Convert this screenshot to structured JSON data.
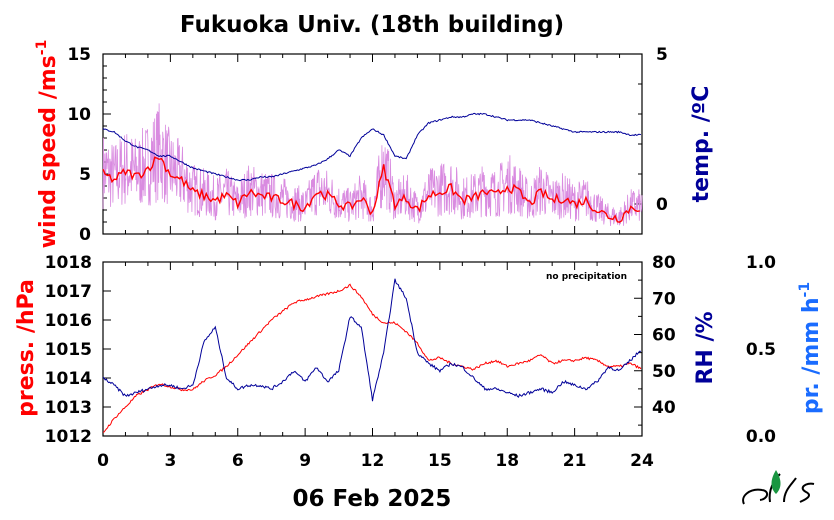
{
  "chart_data": [
    {
      "type": "line",
      "panel": "upper",
      "title": "Fukuoka Univ. (18th building)",
      "ylabel_left": "wind speed /ms",
      "ylabel_left_superscript": "-1",
      "ylabel_right": "temp. /ºC",
      "colors": {
        "wind_speed": "#ff0000",
        "wind_speed_raw": "#d98be0",
        "temperature": "#000099"
      },
      "x_ticks": [
        "0",
        "3",
        "6",
        "9",
        "12",
        "15",
        "18",
        "21",
        "24"
      ],
      "xlim": [
        0,
        24
      ],
      "ylim_left": [
        0,
        15
      ],
      "yticks_left": [
        "0",
        "5",
        "10",
        "15"
      ],
      "ylim_right": [
        -1,
        5
      ],
      "yticks_right": [
        "0",
        "5"
      ],
      "series": [
        {
          "name": "wind speed",
          "axis": "left",
          "x": [
            0,
            0.5,
            1,
            1.5,
            2,
            2.5,
            3,
            3.5,
            4,
            4.5,
            5,
            5.5,
            6,
            6.5,
            7,
            7.5,
            8,
            8.5,
            9,
            9.5,
            10,
            10.5,
            11,
            11.5,
            12,
            12.5,
            13,
            13.5,
            14,
            14.5,
            15,
            15.5,
            16,
            16.5,
            17,
            17.5,
            18,
            18.5,
            19,
            19.5,
            20,
            20.5,
            21,
            21.5,
            22,
            22.5,
            23,
            23.5,
            24
          ],
          "values": [
            5,
            4.5,
            5.2,
            4.8,
            5.5,
            6.5,
            5,
            4.5,
            3.5,
            3.2,
            2.8,
            3.2,
            2.5,
            3.5,
            3.2,
            3,
            2.8,
            2.5,
            2.2,
            3.5,
            3.2,
            2.5,
            2.2,
            3,
            1.8,
            5.5,
            2.5,
            3,
            2,
            3.2,
            3.5,
            3.8,
            2.8,
            3,
            3.5,
            3.2,
            4,
            3.5,
            2.5,
            3.5,
            2.8,
            3,
            2.5,
            2.8,
            2,
            1.5,
            1.3,
            2.2,
            2.2
          ]
        },
        {
          "name": "temperature",
          "axis": "right",
          "x": [
            0,
            0.5,
            1,
            1.5,
            2,
            2.5,
            3,
            3.5,
            4,
            4.5,
            5,
            5.5,
            6,
            6.5,
            7,
            7.5,
            8,
            8.5,
            9,
            9.5,
            10,
            10.5,
            11,
            11.5,
            12,
            12.5,
            13,
            13.5,
            14,
            14.5,
            15,
            15.5,
            16,
            16.5,
            17,
            17.5,
            18,
            18.5,
            19,
            19.5,
            20,
            20.5,
            21,
            21.5,
            22,
            22.5,
            23,
            23.5,
            24
          ],
          "values": [
            2.5,
            2.4,
            2.1,
            1.9,
            1.8,
            1.6,
            1.6,
            1.4,
            1.2,
            1.1,
            1.0,
            0.9,
            0.8,
            0.8,
            0.9,
            0.9,
            1.0,
            1.1,
            1.2,
            1.3,
            1.5,
            1.8,
            1.6,
            2.2,
            2.5,
            2.3,
            1.6,
            1.5,
            2.3,
            2.7,
            2.8,
            2.9,
            2.9,
            3.0,
            3.0,
            2.9,
            2.8,
            2.8,
            2.8,
            2.7,
            2.6,
            2.5,
            2.4,
            2.4,
            2.4,
            2.4,
            2.4,
            2.3,
            2.3
          ]
        }
      ]
    },
    {
      "type": "line",
      "panel": "lower",
      "xlabel": "06 Feb 2025",
      "ylabel_left": "press. /hPa",
      "ylabel_right": "RH /%",
      "ylabel_far_right": "pr. /mm h",
      "ylabel_far_right_superscript": "-1",
      "annotation": "no precipitation",
      "colors": {
        "pressure": "#ff0000",
        "rh": "#000099",
        "precip": "#1a6cff"
      },
      "x_ticks": [
        "0",
        "3",
        "6",
        "9",
        "12",
        "15",
        "18",
        "21",
        "24"
      ],
      "xlim": [
        0,
        24
      ],
      "ylim_left": [
        1012,
        1018
      ],
      "yticks_left": [
        "1012",
        "1013",
        "1014",
        "1015",
        "1016",
        "1017",
        "1018"
      ],
      "ylim_right": [
        32,
        80
      ],
      "yticks_right": [
        "40",
        "50",
        "60",
        "70",
        "80"
      ],
      "ylim_far_right": [
        0,
        1
      ],
      "yticks_far_right": [
        "0.0",
        "0.5",
        "1.0"
      ],
      "series": [
        {
          "name": "pressure",
          "axis": "left",
          "x": [
            0,
            0.5,
            1,
            1.5,
            2,
            2.5,
            3,
            3.5,
            4,
            4.5,
            5,
            5.5,
            6,
            6.5,
            7,
            7.5,
            8,
            8.5,
            9,
            9.5,
            10,
            10.5,
            11,
            11.5,
            12,
            12.5,
            13,
            13.5,
            14,
            14.5,
            15,
            15.5,
            16,
            16.5,
            17,
            17.5,
            18,
            18.5,
            19,
            19.5,
            20,
            20.5,
            21,
            21.5,
            22,
            22.5,
            23,
            23.5,
            24
          ],
          "values": [
            1012.1,
            1012.6,
            1013.0,
            1013.4,
            1013.6,
            1013.8,
            1013.7,
            1013.6,
            1013.6,
            1013.9,
            1014.1,
            1014.4,
            1014.8,
            1015.2,
            1015.6,
            1016.0,
            1016.3,
            1016.6,
            1016.7,
            1016.8,
            1016.9,
            1017.0,
            1017.2,
            1016.8,
            1016.2,
            1015.9,
            1015.9,
            1015.6,
            1015.2,
            1014.6,
            1014.7,
            1014.5,
            1014.4,
            1014.3,
            1014.5,
            1014.6,
            1014.4,
            1014.5,
            1014.6,
            1014.8,
            1014.5,
            1014.6,
            1014.6,
            1014.7,
            1014.6,
            1014.4,
            1014.4,
            1014.5,
            1014.3
          ]
        },
        {
          "name": "relative humidity",
          "axis": "right",
          "x": [
            0,
            0.5,
            1,
            1.5,
            2,
            2.5,
            3,
            3.5,
            4,
            4.5,
            5,
            5.5,
            6,
            6.5,
            7,
            7.5,
            8,
            8.5,
            9,
            9.5,
            10,
            10.5,
            11,
            11.5,
            12,
            12.5,
            13,
            13.5,
            14,
            14.5,
            15,
            15.5,
            16,
            16.5,
            17,
            17.5,
            18,
            18.5,
            19,
            19.5,
            20,
            20.5,
            21,
            21.5,
            22,
            22.5,
            23,
            23.5,
            24
          ],
          "values": [
            48,
            46,
            43,
            44,
            45,
            46,
            46,
            45,
            46,
            58,
            62,
            48,
            45,
            46,
            46,
            45,
            47,
            50,
            47,
            51,
            47,
            50,
            65,
            62,
            42,
            55,
            75,
            70,
            55,
            52,
            50,
            52,
            51,
            48,
            45,
            45,
            44,
            43,
            44,
            45,
            44,
            47,
            46,
            45,
            47,
            51,
            50,
            53,
            56
          ]
        },
        {
          "name": "precipitation",
          "axis": "far_right",
          "x": [
            0,
            24
          ],
          "values": [
            0,
            0
          ]
        }
      ]
    }
  ]
}
